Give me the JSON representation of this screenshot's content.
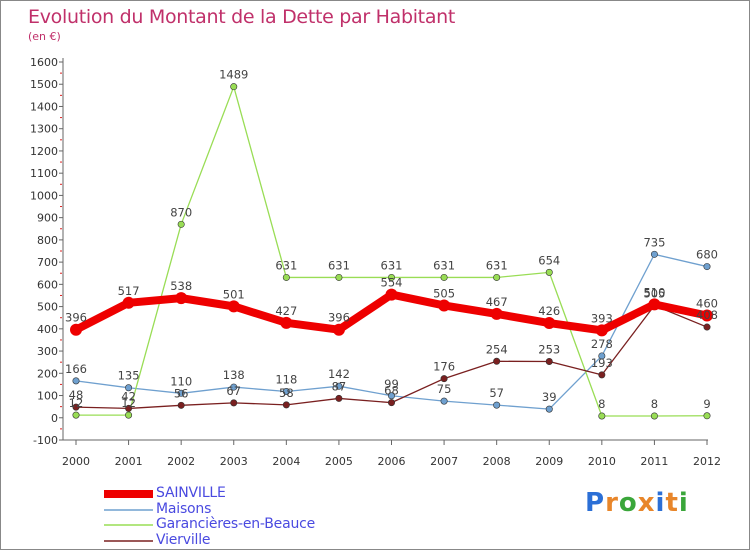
{
  "title": "Evolution du Montant de la Dette par Habitant",
  "unit": "(en €)",
  "brand": {
    "letters": [
      "P",
      "r",
      "o",
      "x",
      "i",
      "t",
      "i"
    ],
    "colors": [
      "#2b6fd6",
      "#e8862a",
      "#3aa63a",
      "#e8862a",
      "#2b6fd6",
      "#e8862a",
      "#3aa63a"
    ]
  },
  "chart_data": {
    "type": "line",
    "x": [
      "2000",
      "2001",
      "2002",
      "2003",
      "2004",
      "2005",
      "2006",
      "2007",
      "2008",
      "2009",
      "2010",
      "2011",
      "2012"
    ],
    "ylim": [
      -100,
      1600
    ],
    "yticks": [
      "-100",
      "0",
      "100",
      "200",
      "300",
      "400",
      "500",
      "600",
      "700",
      "800",
      "900",
      "1000",
      "1100",
      "1200",
      "1300",
      "1400",
      "1500",
      "1600"
    ],
    "grid": false,
    "legend_position": "bottom-left",
    "series": [
      {
        "name": "SAINVILLE",
        "color": "#ee0000",
        "values": [
          396,
          517,
          538,
          501,
          427,
          396,
          554,
          505,
          467,
          426,
          393,
          510,
          460
        ],
        "labels": [
          "396",
          "517",
          "538",
          "501",
          "427",
          "396",
          "554",
          "505",
          "467",
          "426",
          "393",
          "510",
          "460"
        ]
      },
      {
        "name": "Maisons",
        "color": "#6fa0cf",
        "values": [
          166,
          135,
          110,
          138,
          118,
          142,
          99,
          75,
          57,
          39,
          278,
          735,
          680
        ],
        "labels": [
          "166",
          "135",
          "110",
          "138",
          "118",
          "142",
          "99",
          "75",
          "57",
          "39",
          "278",
          "735",
          "680"
        ]
      },
      {
        "name": "Garancières-en-Beauce",
        "color": "#99dd55",
        "values": [
          12,
          12,
          870,
          1489,
          631,
          631,
          631,
          631,
          631,
          654,
          8,
          8,
          9
        ],
        "labels": [
          "12",
          "12",
          "870",
          "1489",
          "631",
          "631",
          "631",
          "631",
          "631",
          "654",
          "8",
          "8",
          "9"
        ]
      },
      {
        "name": "Vierville",
        "color": "#7a2020",
        "values": [
          48,
          42,
          56,
          67,
          58,
          87,
          68,
          176,
          254,
          253,
          193,
          505,
          408
        ],
        "labels": [
          "48",
          "42",
          "56",
          "67",
          "58",
          "87",
          "68",
          "176",
          "254",
          "253",
          "193",
          "505",
          "408"
        ]
      }
    ]
  }
}
